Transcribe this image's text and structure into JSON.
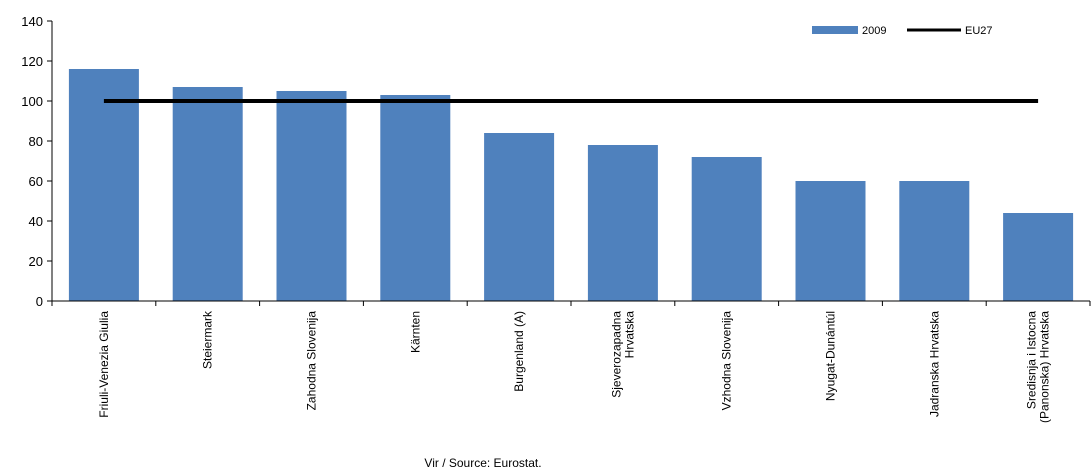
{
  "chart_data": {
    "type": "bar",
    "categories": [
      [
        "Friuli-Venezia Giulia"
      ],
      [
        "Steiermark"
      ],
      [
        "Zahodna Slovenija"
      ],
      [
        "Kärnten"
      ],
      [
        "Burgenland (A)"
      ],
      [
        "Sjeverozapadna",
        "Hrvatska"
      ],
      [
        "Vzhodna Slovenija"
      ],
      [
        "Nyugat-Dunántúl"
      ],
      [
        "Jadranska Hrvatska"
      ],
      [
        "Sredisnja i Istocna",
        "(Panonska) Hrvatska"
      ]
    ],
    "series": [
      {
        "name": "2009",
        "type": "bar",
        "color": "#4f81bd",
        "values": [
          116,
          107,
          105,
          103,
          84,
          78,
          72,
          60,
          60,
          44
        ]
      },
      {
        "name": "EU27",
        "type": "line",
        "color": "#000000",
        "values": [
          100,
          100,
          100,
          100,
          100,
          100,
          100,
          100,
          100,
          100
        ]
      }
    ],
    "ylim": [
      0,
      140
    ],
    "yticks": [
      0,
      20,
      40,
      60,
      80,
      100,
      120,
      140
    ],
    "legend_position": "top-right",
    "grid": false
  },
  "source": "Vir / Source: Eurostat."
}
